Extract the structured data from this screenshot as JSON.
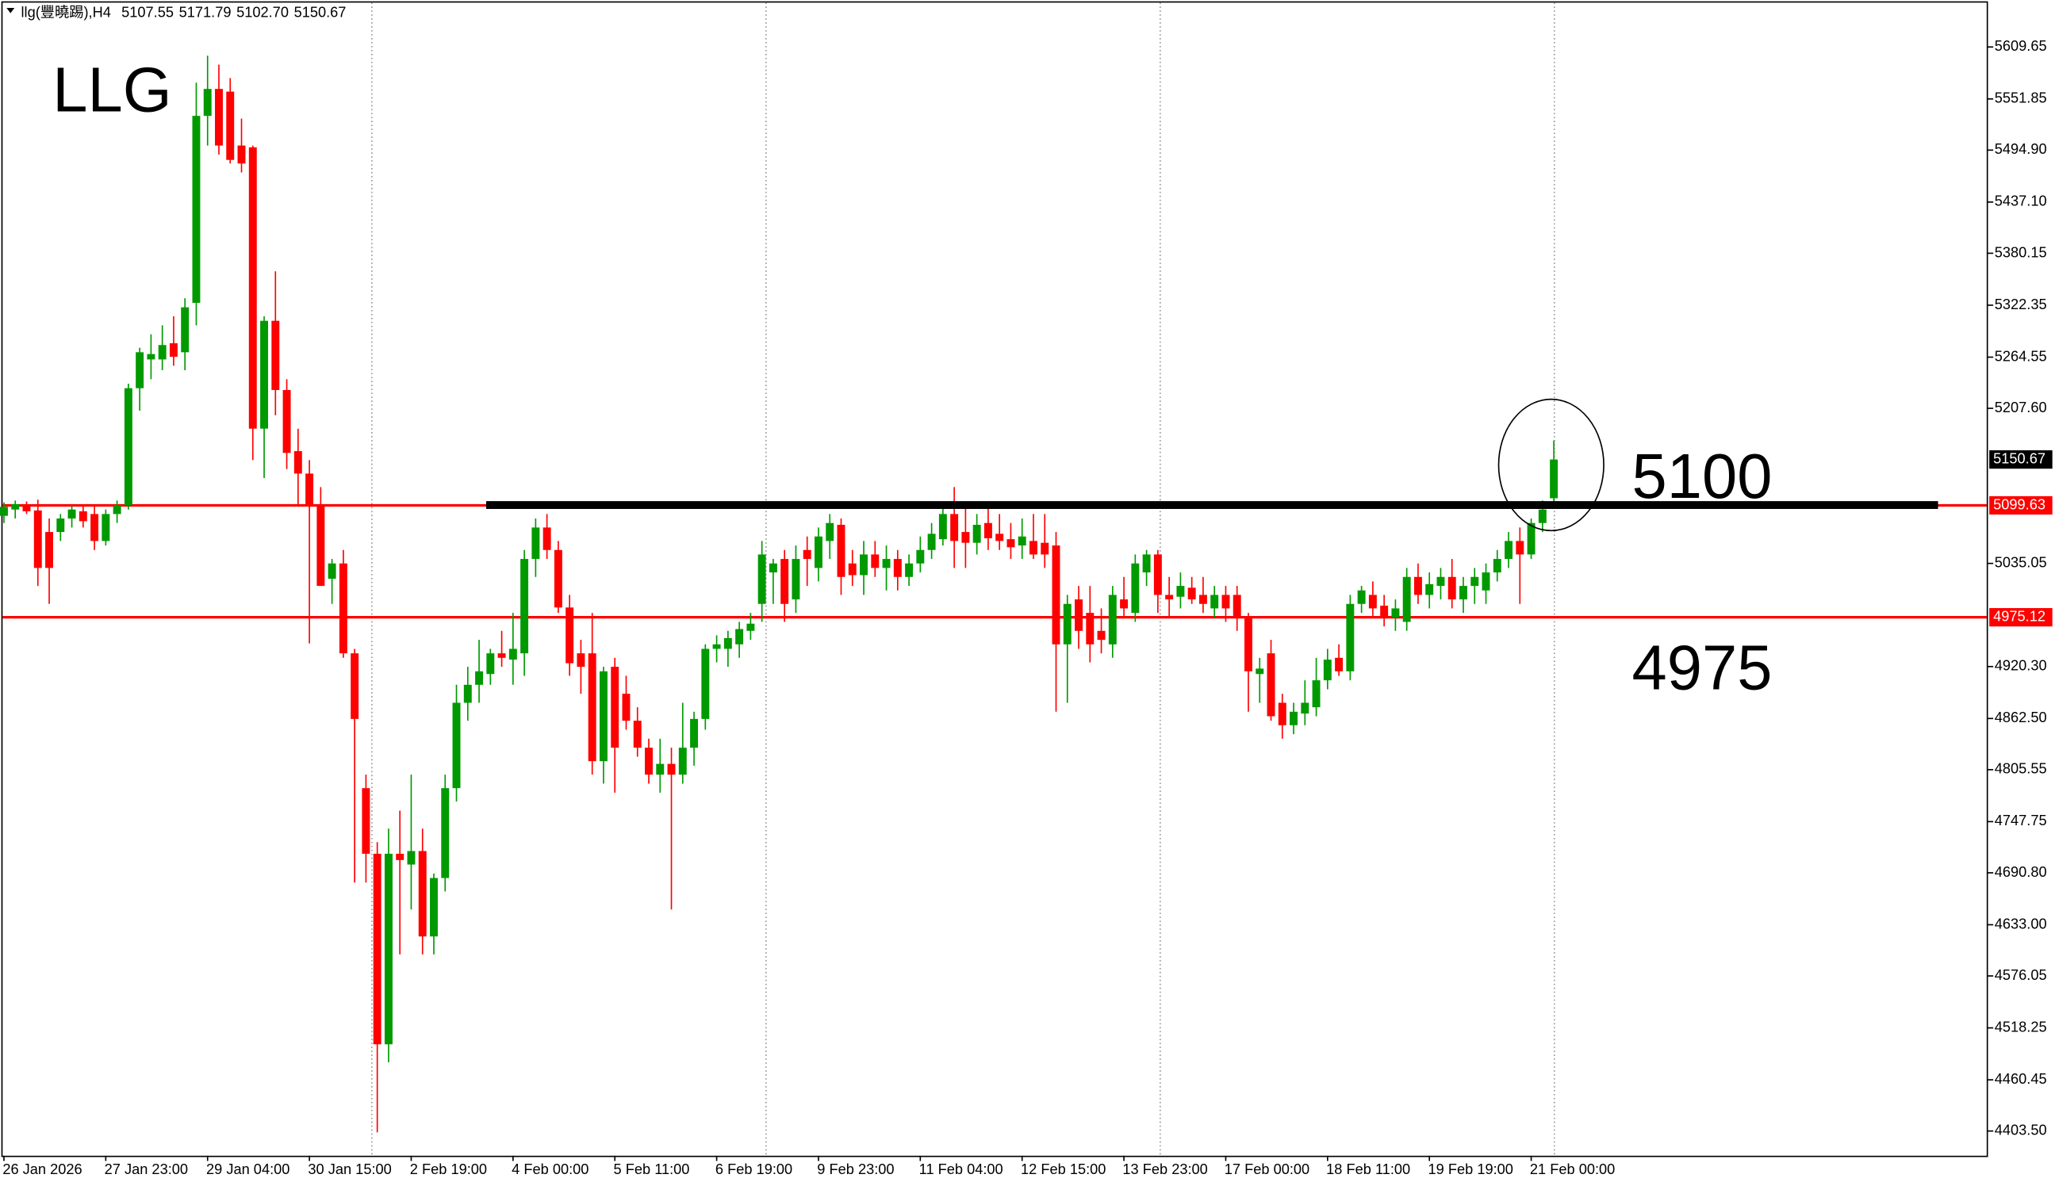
{
  "chart_data": {
    "type": "candlestick",
    "title": "LLG",
    "header_symbol": "llg(豐曉踢),H4",
    "header_ohlc": [
      "5107.55",
      "5171.79",
      "5102.70",
      "5150.67"
    ],
    "categories": [
      "26 Jan 2026",
      null,
      null,
      null,
      null,
      null,
      null,
      null,
      null,
      "27 Jan 23:00",
      null,
      null,
      null,
      null,
      null,
      null,
      null,
      null,
      "29 Jan 04:00",
      null,
      null,
      null,
      null,
      null,
      null,
      null,
      null,
      "30 Jan 15:00",
      null,
      null,
      null,
      null,
      null,
      null,
      null,
      null,
      "2 Feb 19:00",
      null,
      null,
      null,
      null,
      null,
      null,
      null,
      null,
      "4 Feb 00:00",
      null,
      null,
      null,
      null,
      null,
      null,
      null,
      null,
      "5 Feb 11:00",
      null,
      null,
      null,
      null,
      null,
      null,
      null,
      null,
      "6 Feb 19:00",
      null,
      null,
      null,
      null,
      null,
      null,
      null,
      null,
      "9 Feb 23:00",
      null,
      null,
      null,
      null,
      null,
      null,
      null,
      null,
      "11 Feb 04:00",
      null,
      null,
      null,
      null,
      null,
      null,
      null,
      null,
      "12 Feb 15:00",
      null,
      null,
      null,
      null,
      null,
      null,
      null,
      null,
      "13 Feb 23:00",
      null,
      null,
      null,
      null,
      null,
      null,
      null,
      null,
      "17 Feb 00:00",
      null,
      null,
      null,
      null,
      null,
      null,
      null,
      null,
      "18 Feb 11:00",
      null,
      null,
      null,
      null,
      null,
      null,
      null,
      null,
      "19 Feb 19:00",
      null,
      null,
      null,
      null,
      null,
      null,
      null,
      null,
      "21 Feb 00:00",
      null,
      null
    ],
    "open": [
      5088,
      5095,
      5100,
      5094,
      5070,
      5070,
      5085,
      5093,
      5090,
      5060,
      5090,
      5100,
      5230,
      5262,
      5262,
      5280,
      5270,
      5325,
      5533,
      5563,
      5560,
      5500,
      5498,
      5185,
      5305,
      5228,
      5160,
      5135,
      5100,
      5018,
      5035,
      4935,
      4785,
      4712,
      4500,
      4712,
      4700,
      4715,
      4620,
      4685,
      4785,
      4880,
      4900,
      4912,
      4935,
      4928,
      4935,
      5040,
      5075,
      5050,
      4986,
      4935,
      4935,
      4815,
      4920,
      4890,
      4860,
      4830,
      4800,
      4812,
      4800,
      4830,
      4862,
      4940,
      4940,
      4945,
      4960,
      4990,
      5025,
      5040,
      4995,
      5050,
      5030,
      5060,
      5078,
      5035,
      5022,
      5045,
      5030,
      5040,
      5020,
      5035,
      5050,
      5062,
      5090,
      5070,
      5058,
      5080,
      5068,
      5062,
      5055,
      5060,
      5058,
      5055,
      4945,
      4995,
      4980,
      4960,
      4945,
      4995,
      4980,
      5025,
      5045,
      5000,
      4998,
      5008,
      5000,
      4985,
      5000,
      5000,
      4975,
      4912,
      4935,
      4880,
      4855,
      4868,
      4875,
      4905,
      4930,
      4915,
      4990,
      5000,
      4988,
      4975,
      4970,
      5020,
      5000,
      5010,
      5020,
      4995,
      5010,
      5005,
      5025,
      5040,
      5060,
      5045,
      5080,
      5107.55
    ],
    "high": [
      5103,
      5105,
      5104,
      5106,
      5085,
      5090,
      5100,
      5100,
      5100,
      5095,
      5105,
      5235,
      5275,
      5290,
      5300,
      5310,
      5330,
      5570,
      5600,
      5590,
      5575,
      5530,
      5500,
      5310,
      5360,
      5240,
      5185,
      5150,
      5120,
      5040,
      5050,
      4940,
      4800,
      4725,
      4740,
      4760,
      4800,
      4740,
      4690,
      4800,
      4900,
      4920,
      4950,
      4940,
      4960,
      4980,
      5050,
      5085,
      5090,
      5060,
      5000,
      4950,
      4980,
      4920,
      4930,
      4910,
      4875,
      4840,
      4840,
      4830,
      4880,
      4870,
      4945,
      4955,
      4960,
      4970,
      4980,
      5060,
      5040,
      5050,
      5055,
      5065,
      5075,
      5090,
      5085,
      5050,
      5060,
      5060,
      5055,
      5050,
      5045,
      5065,
      5080,
      5100,
      5120,
      5100,
      5090,
      5100,
      5090,
      5080,
      5085,
      5090,
      5090,
      5070,
      5000,
      5010,
      5010,
      4985,
      5010,
      5020,
      5045,
      5050,
      5050,
      5020,
      5025,
      5020,
      5020,
      5010,
      5010,
      5010,
      4980,
      4930,
      4950,
      4890,
      4880,
      4905,
      4930,
      4940,
      4945,
      5000,
      5010,
      5015,
      5000,
      4995,
      5030,
      5035,
      5025,
      5030,
      5040,
      5020,
      5030,
      5035,
      5050,
      5070,
      5075,
      5085,
      5105,
      5171.79
    ],
    "low": [
      5080,
      5085,
      5090,
      5010,
      4990,
      5060,
      5075,
      5075,
      5050,
      5055,
      5080,
      5095,
      5205,
      5240,
      5250,
      5255,
      5250,
      5300,
      5500,
      5490,
      5480,
      5470,
      5150,
      5130,
      5200,
      5140,
      5100,
      4946,
      5010,
      4990,
      4930,
      4680,
      4680,
      4402,
      4480,
      4600,
      4650,
      4600,
      4600,
      4670,
      4770,
      4860,
      4880,
      4900,
      4920,
      4900,
      4910,
      5020,
      5040,
      4980,
      4910,
      4890,
      4800,
      4790,
      4780,
      4850,
      4820,
      4790,
      4780,
      4650,
      4790,
      4810,
      4850,
      4925,
      4920,
      4930,
      4950,
      4970,
      4990,
      4970,
      4980,
      5010,
      5015,
      5040,
      5000,
      5010,
      5000,
      5020,
      5005,
      5005,
      5010,
      5025,
      5040,
      5055,
      5030,
      5030,
      5045,
      5050,
      5050,
      5040,
      5040,
      5040,
      5030,
      4870,
      4880,
      4940,
      4925,
      4935,
      4930,
      4975,
      4970,
      5010,
      4980,
      4975,
      4985,
      4990,
      4980,
      4975,
      4970,
      4960,
      4870,
      4880,
      4860,
      4840,
      4845,
      4855,
      4865,
      4895,
      4910,
      4905,
      4980,
      4975,
      4965,
      4960,
      4960,
      4990,
      4985,
      4995,
      4985,
      4980,
      4990,
      4990,
      5015,
      5030,
      4990,
      5040,
      5070,
      5102.7
    ],
    "close": [
      5098,
      5101,
      5093,
      5030,
      5030,
      5085,
      5095,
      5082,
      5060,
      5090,
      5100,
      5230,
      5270,
      5268,
      5278,
      5265,
      5320,
      5533,
      5563,
      5500,
      5484,
      5480,
      5185,
      5305,
      5228,
      5158,
      5135,
      5100,
      5010,
      5035,
      4935,
      4862,
      4712,
      4500,
      4712,
      4705,
      4715,
      4620,
      4685,
      4785,
      4880,
      4900,
      4915,
      4935,
      4930,
      4940,
      5040,
      5075,
      5050,
      4986,
      4924,
      4920,
      4815,
      4915,
      4830,
      4860,
      4830,
      4800,
      4812,
      4800,
      4830,
      4862,
      4940,
      4945,
      4952,
      4962,
      4968,
      5045,
      5035,
      4990,
      5040,
      5040,
      5065,
      5080,
      5020,
      5022,
      5045,
      5030,
      5040,
      5020,
      5035,
      5050,
      5068,
      5090,
      5060,
      5058,
      5078,
      5063,
      5060,
      5053,
      5065,
      5045,
      5045,
      4945,
      4990,
      4960,
      4945,
      4950,
      5000,
      4985,
      5035,
      5045,
      5000,
      4995,
      5010,
      4995,
      4990,
      5000,
      4985,
      4975,
      4915,
      4918,
      4865,
      4855,
      4870,
      4880,
      4905,
      4928,
      4915,
      4990,
      5005,
      4985,
      4975,
      4985,
      5020,
      5000,
      5012,
      5020,
      4995,
      5010,
      5020,
      5025,
      5040,
      5060,
      5045,
      5080,
      5095,
      5150.67
    ],
    "up_color": "#009a00",
    "down_color": "#ff0000",
    "ylim": [
      4376.0,
      5659.0
    ],
    "yticks": [
      {
        "value": 5609.65,
        "label": "5609.65"
      },
      {
        "value": 5551.85,
        "label": "5551.85"
      },
      {
        "value": 5494.9,
        "label": "5494.90"
      },
      {
        "value": 5437.1,
        "label": "5437.10"
      },
      {
        "value": 5380.15,
        "label": "5380.15"
      },
      {
        "value": 5322.35,
        "label": "5322.35"
      },
      {
        "value": 5264.55,
        "label": "5264.55"
      },
      {
        "value": 5207.6,
        "label": "5207.60"
      },
      {
        "value": 5035.05,
        "label": "5035.05"
      },
      {
        "value": 4920.3,
        "label": "4920.30"
      },
      {
        "value": 4862.5,
        "label": "4862.50"
      },
      {
        "value": 4805.55,
        "label": "4805.55"
      },
      {
        "value": 4747.75,
        "label": "4747.75"
      },
      {
        "value": 4690.8,
        "label": "4690.80"
      },
      {
        "value": 4633.0,
        "label": "4633.00"
      },
      {
        "value": 4576.05,
        "label": "4576.05"
      },
      {
        "value": 4518.25,
        "label": "4518.25"
      },
      {
        "value": 4460.45,
        "label": "4460.45"
      },
      {
        "value": 4403.5,
        "label": "4403.50"
      }
    ],
    "hlines": [
      {
        "value": 5099.63,
        "label": "5099.63",
        "color": "#ff0000"
      },
      {
        "value": 4975.12,
        "label": "4975.12",
        "color": "#ff0000"
      }
    ],
    "price_line": {
      "value": 5150.67,
      "label": "5150.67"
    },
    "trendline": {
      "value": 5100,
      "label": "5100"
    },
    "annotations": [
      {
        "value": 4975,
        "label": "4975"
      }
    ]
  }
}
